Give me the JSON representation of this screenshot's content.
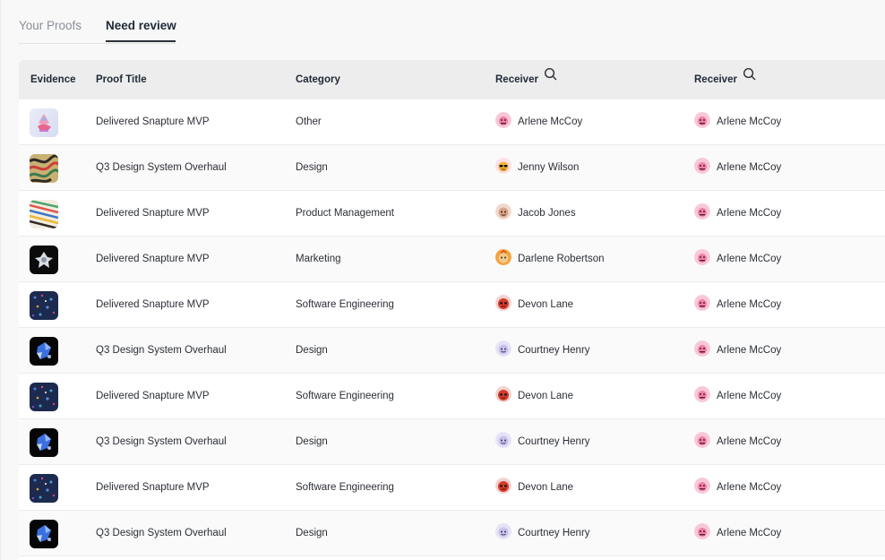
{
  "tabs": [
    {
      "label": "Your Proofs",
      "active": false
    },
    {
      "label": "Need review",
      "active": true
    }
  ],
  "table": {
    "headers": {
      "evidence": "Evidence",
      "title": "Proof Title",
      "category": "Category",
      "receiver1": "Receiver",
      "receiver2": "Receiver"
    },
    "rows": [
      {
        "evidence": "pastel-hand-art",
        "title": "Delivered Snapture MVP",
        "category": "Other",
        "receiver1": {
          "name": "Arlene McCoy",
          "avatar": "pink"
        },
        "receiver2": {
          "name": "Arlene McCoy",
          "avatar": "pink"
        }
      },
      {
        "evidence": "swirl-pattern-art",
        "title": "Q3 Design System Overhaul",
        "category": "Design",
        "receiver1": {
          "name": "Jenny Wilson",
          "avatar": "sunglasses"
        },
        "receiver2": {
          "name": "Arlene McCoy",
          "avatar": "pink"
        }
      },
      {
        "evidence": "colorful-stripes-art",
        "title": "Delivered Snapture MVP",
        "category": "Product Management",
        "receiver1": {
          "name": "Jacob Jones",
          "avatar": "tan"
        },
        "receiver2": {
          "name": "Arlene McCoy",
          "avatar": "pink"
        }
      },
      {
        "evidence": "silver-flower-art",
        "title": "Delivered Snapture MVP",
        "category": "Marketing",
        "receiver1": {
          "name": "Darlene Robertson",
          "avatar": "orange"
        },
        "receiver2": {
          "name": "Arlene McCoy",
          "avatar": "pink"
        }
      },
      {
        "evidence": "blue-sparkle-art",
        "title": "Delivered Snapture MVP",
        "category": "Software Engineering",
        "receiver1": {
          "name": "Devon Lane",
          "avatar": "red"
        },
        "receiver2": {
          "name": "Arlene McCoy",
          "avatar": "pink"
        }
      },
      {
        "evidence": "blue-crystal-art",
        "title": "Q3 Design System Overhaul",
        "category": "Design",
        "receiver1": {
          "name": "Courtney Henry",
          "avatar": "lavender"
        },
        "receiver2": {
          "name": "Arlene McCoy",
          "avatar": "pink"
        }
      },
      {
        "evidence": "blue-sparkle-art",
        "title": "Delivered Snapture MVP",
        "category": "Software Engineering",
        "receiver1": {
          "name": "Devon Lane",
          "avatar": "red"
        },
        "receiver2": {
          "name": "Arlene McCoy",
          "avatar": "pink"
        }
      },
      {
        "evidence": "blue-crystal-art",
        "title": "Q3 Design System Overhaul",
        "category": "Design",
        "receiver1": {
          "name": "Courtney Henry",
          "avatar": "lavender"
        },
        "receiver2": {
          "name": "Arlene McCoy",
          "avatar": "pink"
        }
      },
      {
        "evidence": "blue-sparkle-art",
        "title": "Delivered Snapture MVP",
        "category": "Software Engineering",
        "receiver1": {
          "name": "Devon Lane",
          "avatar": "red"
        },
        "receiver2": {
          "name": "Arlene McCoy",
          "avatar": "pink"
        }
      },
      {
        "evidence": "blue-crystal-art",
        "title": "Q3 Design System Overhaul",
        "category": "Design",
        "receiver1": {
          "name": "Courtney Henry",
          "avatar": "lavender"
        },
        "receiver2": {
          "name": "Arlene McCoy",
          "avatar": "pink"
        }
      }
    ]
  },
  "icons": {
    "header_search": "search-icon"
  },
  "colors": {
    "active_tab_text": "#1f2937",
    "inactive_tab_text": "#8a8f98",
    "header_bg": "#ededed",
    "row_border": "#ececec"
  }
}
